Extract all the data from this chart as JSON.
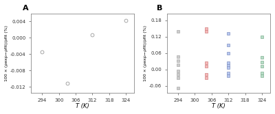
{
  "panel_A": {
    "x": [
      294,
      303,
      312,
      324
    ],
    "y": [
      -0.0035,
      -0.0112,
      0.0008,
      0.0043
    ],
    "marker": "o",
    "markerfacecolor": "none",
    "markeredgecolor": "#999999",
    "markersize": 3.5,
    "markeredgewidth": 0.6
  },
  "panel_B": {
    "series": [
      {
        "x": [
          294,
          294,
          294,
          294,
          294,
          294,
          294,
          294
        ],
        "y": [
          0.14,
          0.048,
          0.032,
          0.016,
          -0.005,
          -0.018,
          -0.03,
          -0.068
        ],
        "markerfacecolor": "#cccccc",
        "markeredgecolor": "#aaaaaa"
      },
      {
        "x": [
          304,
          304,
          304,
          304,
          304,
          304
        ],
        "y": [
          0.148,
          0.14,
          0.025,
          0.012,
          -0.018,
          -0.03
        ],
        "markerfacecolor": "#f5b8b8",
        "markeredgecolor": "#d08080"
      },
      {
        "x": [
          312,
          312,
          312,
          312,
          312,
          312,
          312,
          312
        ],
        "y": [
          0.132,
          0.09,
          0.06,
          0.025,
          0.015,
          0.008,
          -0.012,
          -0.022
        ],
        "markerfacecolor": "#b8c8f0",
        "markeredgecolor": "#8090c0"
      },
      {
        "x": [
          324,
          324,
          324,
          324,
          324,
          324
        ],
        "y": [
          0.118,
          0.045,
          0.028,
          0.012,
          -0.012,
          -0.022
        ],
        "markerfacecolor": "#b8ddc8",
        "markeredgecolor": "#80b090"
      }
    ],
    "marker": "s",
    "markersize": 3.0,
    "markeredgewidth": 0.5
  },
  "panel_A_xlabel": "T (K)",
  "panel_A_ylabel": "100 × (ρexp−ρfit)/ρfit (%)",
  "panel_B_xlabel": "T (K)",
  "panel_B_ylabel": "100 × (ρexp−ρfit)/ρfit (%)",
  "panel_A_xlim": [
    290,
    327
  ],
  "panel_A_ylim": [
    -0.0135,
    0.006
  ],
  "panel_A_xticks": [
    294,
    300,
    306,
    312,
    318,
    324
  ],
  "panel_A_yticks": [
    -0.012,
    -0.008,
    -0.004,
    0.0,
    0.004
  ],
  "panel_B_xlim": [
    290,
    327
  ],
  "panel_B_ylim": [
    -0.085,
    0.205
  ],
  "panel_B_xticks": [
    294,
    300,
    306,
    312,
    318,
    324
  ],
  "panel_B_yticks": [
    -0.06,
    0.0,
    0.06,
    0.12,
    0.18
  ],
  "label_A": "A",
  "label_B": "B",
  "bg_color": "#ffffff",
  "fig_bg_color": "#ffffff",
  "spine_color": "#888888",
  "tick_color": "#555555"
}
